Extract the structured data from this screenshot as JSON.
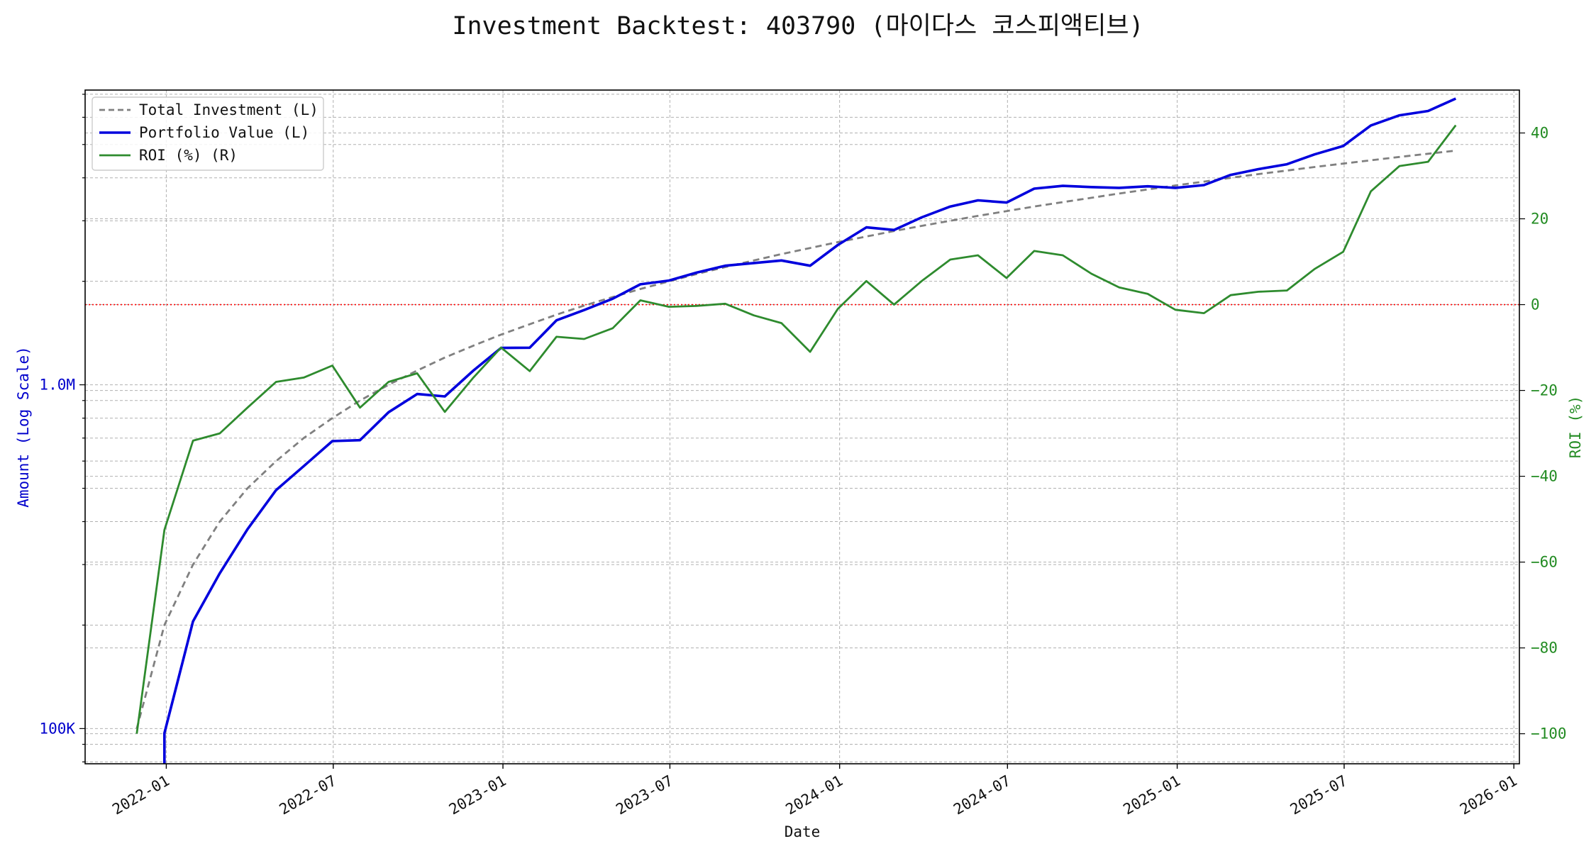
{
  "chart_data": {
    "type": "line",
    "title": "Investment Backtest: 403790 (마이다스 코스피액티브)",
    "xlabel": "Date",
    "ylabel_left": "Amount (Log Scale)",
    "ylabel_right": "ROI (%)",
    "x_ticks": [
      "2022-01",
      "2022-07",
      "2023-01",
      "2023-07",
      "2024-01",
      "2024-07",
      "2025-01",
      "2025-07",
      "2026-01"
    ],
    "y_left_ticks": [
      "100K",
      "1.0M"
    ],
    "y_right_ticks": [
      "40",
      "20",
      "0",
      "−20",
      "−40",
      "−60",
      "−80",
      "−100"
    ],
    "y_left_scale": "log",
    "y_left_range": [
      79000,
      7200000
    ],
    "y_right_range": [
      -107,
      50
    ],
    "x_range": [
      "2021-10-05",
      "2026-01-07"
    ],
    "grid": true,
    "legend_placement": "top-left",
    "zero_line_color": "#ff0000",
    "left_axis_color": "#0000cc",
    "right_axis_color": "#228b22",
    "series": [
      {
        "name": "Total Investment (L)",
        "axis": "left",
        "color": "#808080",
        "style": "dashed",
        "x": [
          "2021-11-30",
          "2021-12-30",
          "2022-01-30",
          "2022-02-28",
          "2022-03-30",
          "2022-04-30",
          "2022-05-30",
          "2022-06-30",
          "2022-07-30",
          "2022-08-30",
          "2022-09-30",
          "2022-10-30",
          "2022-11-30",
          "2022-12-30",
          "2023-01-30",
          "2023-02-28",
          "2023-03-30",
          "2023-04-30",
          "2023-05-30",
          "2023-06-30",
          "2023-07-30",
          "2023-08-30",
          "2023-09-30",
          "2023-10-30",
          "2023-11-30",
          "2023-12-30",
          "2024-01-30",
          "2024-02-29",
          "2024-03-30",
          "2024-04-30",
          "2024-05-30",
          "2024-06-30",
          "2024-07-30",
          "2024-08-30",
          "2024-09-30",
          "2024-10-30",
          "2024-11-30",
          "2024-12-30",
          "2025-01-30",
          "2025-02-28",
          "2025-03-30",
          "2025-04-30",
          "2025-05-30",
          "2025-06-30",
          "2025-07-30",
          "2025-08-30",
          "2025-09-30",
          "2025-10-30"
        ],
        "values": [
          100000,
          200000,
          300000,
          400000,
          500000,
          600000,
          700000,
          800000,
          900000,
          1000000,
          1100000,
          1200000,
          1300000,
          1400000,
          1500000,
          1600000,
          1700000,
          1800000,
          1900000,
          2000000,
          2100000,
          2200000,
          2300000,
          2400000,
          2500000,
          2600000,
          2700000,
          2800000,
          2900000,
          3000000,
          3100000,
          3200000,
          3300000,
          3400000,
          3500000,
          3600000,
          3700000,
          3800000,
          3900000,
          4000000,
          4100000,
          4200000,
          4300000,
          4400000,
          4500000,
          4600000,
          4700000,
          4800000
        ]
      },
      {
        "name": "Portfolio Value (L)",
        "axis": "left",
        "color": "#0000dd",
        "style": "solid",
        "x": [
          "2021-12-30",
          "2022-01-30",
          "2022-02-28",
          "2022-03-30",
          "2022-04-30",
          "2022-05-30",
          "2022-06-30",
          "2022-07-30",
          "2022-08-30",
          "2022-09-30",
          "2022-10-30",
          "2022-11-30",
          "2022-12-30",
          "2023-01-30",
          "2023-02-28",
          "2023-03-30",
          "2023-04-30",
          "2023-05-30",
          "2023-06-30",
          "2023-07-30",
          "2023-08-30",
          "2023-09-30",
          "2023-10-30",
          "2023-11-30",
          "2023-12-30",
          "2024-01-30",
          "2024-02-29",
          "2024-03-30",
          "2024-04-30",
          "2024-05-30",
          "2024-06-30",
          "2024-07-30",
          "2024-08-30",
          "2024-09-30",
          "2024-10-30",
          "2024-11-30",
          "2024-12-30",
          "2025-01-30",
          "2025-02-28",
          "2025-03-30",
          "2025-04-30",
          "2025-05-30",
          "2025-06-30",
          "2025-07-30",
          "2025-08-30",
          "2025-09-30",
          "2025-10-30"
        ],
        "values": [
          97000,
          205000,
          283000,
          380000,
          494000,
          580000,
          686000,
          690000,
          832000,
          940000,
          925000,
          1100000,
          1280000,
          1282000,
          1540000,
          1650000,
          1780000,
          1960000,
          2010000,
          2120000,
          2220000,
          2260000,
          2300000,
          2220000,
          2550000,
          2870000,
          2820000,
          3070000,
          3300000,
          3440000,
          3390000,
          3720000,
          3790000,
          3760000,
          3740000,
          3780000,
          3740000,
          3810000,
          4080000,
          4240000,
          4380000,
          4680000,
          4950000,
          5680000,
          6080000,
          6260000,
          6800000
        ]
      },
      {
        "name": "ROI (%) (R)",
        "axis": "right",
        "color": "#2e8b2e",
        "style": "solid",
        "x": [
          "2021-11-30",
          "2021-12-30",
          "2022-01-30",
          "2022-02-28",
          "2022-03-30",
          "2022-04-30",
          "2022-05-30",
          "2022-06-30",
          "2022-07-30",
          "2022-08-30",
          "2022-09-30",
          "2022-10-30",
          "2022-11-30",
          "2022-12-30",
          "2023-01-30",
          "2023-02-28",
          "2023-03-30",
          "2023-04-30",
          "2023-05-30",
          "2023-06-30",
          "2023-07-30",
          "2023-08-30",
          "2023-09-30",
          "2023-10-30",
          "2023-11-30",
          "2023-12-30",
          "2024-01-30",
          "2024-02-29",
          "2024-03-30",
          "2024-04-30",
          "2024-05-30",
          "2024-06-30",
          "2024-07-30",
          "2024-08-30",
          "2024-09-30",
          "2024-10-30",
          "2024-11-30",
          "2024-12-30",
          "2025-01-30",
          "2025-02-28",
          "2025-03-30",
          "2025-04-30",
          "2025-05-30",
          "2025-06-30",
          "2025-07-30",
          "2025-08-30",
          "2025-09-30",
          "2025-10-30"
        ],
        "values": [
          -100,
          -52.5,
          -31.7,
          -30,
          -24,
          -18,
          -17,
          -14.2,
          -24,
          -18,
          -16,
          -25,
          -17,
          -10,
          -15.5,
          -7.5,
          -8,
          -5.5,
          1,
          -0.5,
          -0.3,
          0.2,
          -2.5,
          -4.3,
          -11,
          -1,
          5.5,
          0,
          5.5,
          10.5,
          11.5,
          6.2,
          12.5,
          11.5,
          7.2,
          4,
          2.5,
          -1.2,
          -2,
          2.2,
          3,
          3.3,
          8.3,
          12.3,
          26.4,
          32.3,
          33.3,
          41.8
        ]
      }
    ]
  }
}
